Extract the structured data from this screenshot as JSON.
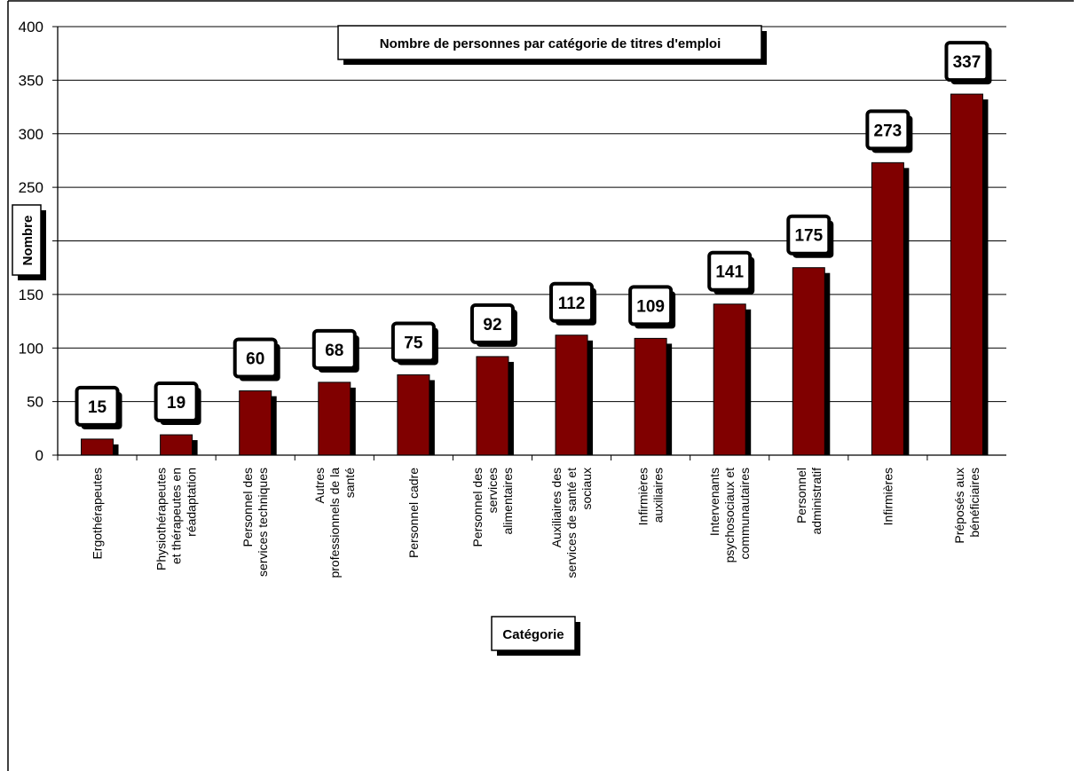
{
  "chart_data": {
    "type": "bar",
    "title": "Nombre de personnes par catégorie de titres d'emploi",
    "xlabel": "Catégorie",
    "ylabel": "Nombre",
    "ylim": [
      0,
      400
    ],
    "yticks": [
      "0",
      "50",
      "100",
      "150",
      "",
      "250",
      "300",
      "350",
      "400"
    ],
    "grid": true,
    "legend": "none",
    "bar_color": "#800000",
    "categories": [
      [
        "Ergothérapeutes"
      ],
      [
        "Physiothérapeutes",
        "et thérapeutes en",
        "réadaptation"
      ],
      [
        "Personnel des",
        "services techniques"
      ],
      [
        "Autres",
        "professionnels de la",
        "santé"
      ],
      [
        "Personnel cadre"
      ],
      [
        "Personnel des",
        "services",
        "alimentaires"
      ],
      [
        "Auxiliaires des",
        "services de santé et",
        "sociaux"
      ],
      [
        "Infirmières",
        "auxiliaires"
      ],
      [
        "Intervenants",
        "psychosociaux et",
        "communautaires"
      ],
      [
        "Personnel",
        "administratif"
      ],
      [
        "Infirmières"
      ],
      [
        "Préposés aux",
        "bénéficiaires"
      ]
    ],
    "values": [
      15,
      19,
      60,
      68,
      75,
      92,
      112,
      109,
      141,
      175,
      273,
      337
    ],
    "data_labels": [
      "15",
      "19",
      "60",
      "68",
      "75",
      "92",
      "112",
      "109",
      "141",
      "175",
      "273",
      "337"
    ]
  }
}
